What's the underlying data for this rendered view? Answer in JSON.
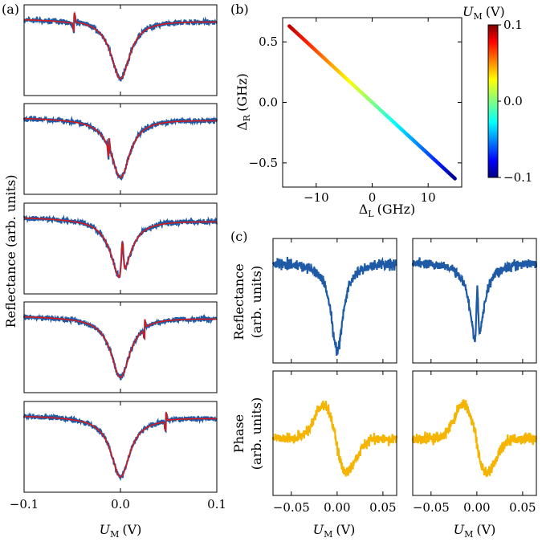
{
  "panel_labels": {
    "a": "(a)",
    "b": "(b)",
    "c": "(c)"
  },
  "colors": {
    "data": "#1f5aa6",
    "fit": "#d7191c",
    "phase": "#f5b400"
  },
  "chart_data": [
    {
      "type": "line",
      "panel": "a",
      "title": "",
      "xlabel_main": "U",
      "xlabel_sub": "M",
      "xlabel_unit": "(V)",
      "ylabel": "Reflectance (arb. units)",
      "xlim": [
        -0.1,
        0.1
      ],
      "xticks": [
        -0.1,
        0.0,
        0.1
      ],
      "xtick_labels": [
        "−0.1",
        "0.0",
        "0.1"
      ],
      "subplots": [
        {
          "dip_center": 0.0,
          "width": 0.012,
          "depth": 0.78,
          "feature_at": -0.048,
          "feature_type": "step",
          "series": [
            "measured",
            "fit"
          ]
        },
        {
          "dip_center": 0.0,
          "width": 0.012,
          "depth": 0.78,
          "feature_at": -0.012,
          "feature_type": "step",
          "series": [
            "measured",
            "fit"
          ]
        },
        {
          "dip_center": 0.0,
          "width": 0.012,
          "depth": 0.78,
          "feature_at": 0.002,
          "feature_type": "peak",
          "series": [
            "measured",
            "fit"
          ]
        },
        {
          "dip_center": 0.0,
          "width": 0.012,
          "depth": 0.78,
          "feature_at": 0.025,
          "feature_type": "step",
          "series": [
            "measured",
            "fit"
          ]
        },
        {
          "dip_center": 0.0,
          "width": 0.012,
          "depth": 0.78,
          "feature_at": 0.047,
          "feature_type": "step",
          "series": [
            "measured",
            "fit"
          ]
        }
      ]
    },
    {
      "type": "scatter",
      "panel": "b",
      "xlabel_main": "Δ",
      "xlabel_sub": "L",
      "xlabel_unit": "(GHz)",
      "ylabel_main": "Δ",
      "ylabel_sub": "R",
      "ylabel_unit": "(GHz)",
      "xlim": [
        -16,
        16
      ],
      "ylim": [
        -0.7,
        0.7
      ],
      "xticks": [
        -10,
        0,
        10
      ],
      "xtick_labels": [
        "−10",
        "0",
        "10"
      ],
      "yticks": [
        -0.5,
        0.0,
        0.5
      ],
      "ytick_labels": [
        "−0.5",
        "0.0",
        "0.5"
      ],
      "line": {
        "x": [
          -14.8,
          14.8
        ],
        "y": [
          0.63,
          -0.63
        ],
        "color_values": [
          0.1,
          -0.1
        ]
      },
      "colorbar": {
        "label_main": "U",
        "label_sub": "M",
        "label_unit": "(V)",
        "range": [
          -0.1,
          0.1
        ],
        "ticks": [
          0.1,
          0.0,
          -0.1
        ],
        "tick_labels": [
          "0.1",
          "0.0",
          "−0.1"
        ],
        "colormap": "jet"
      }
    },
    {
      "type": "line",
      "panel": "c",
      "xlabel_main": "U",
      "xlabel_sub": "M",
      "xlabel_unit": "(V)",
      "xlim": [
        -0.07,
        0.065
      ],
      "xticks": [
        -0.05,
        0.0,
        0.05
      ],
      "xtick_labels": [
        "−0.05",
        "0.00",
        "0.05"
      ],
      "ylabel_top_line1": "Reflectance",
      "ylabel_top_line2": "(arb. units)",
      "ylabel_bottom_line1": "Phase",
      "ylabel_bottom_line2": "(arb. units)",
      "subplots": [
        {
          "row": "reflectance",
          "col": "left",
          "dip_center": 0.0,
          "split": false
        },
        {
          "row": "reflectance",
          "col": "right",
          "dip_center": 0.0,
          "split": true
        },
        {
          "row": "phase",
          "col": "left",
          "center": -0.002,
          "split": false
        },
        {
          "row": "phase",
          "col": "right",
          "center": -0.002,
          "split": true
        }
      ]
    }
  ]
}
